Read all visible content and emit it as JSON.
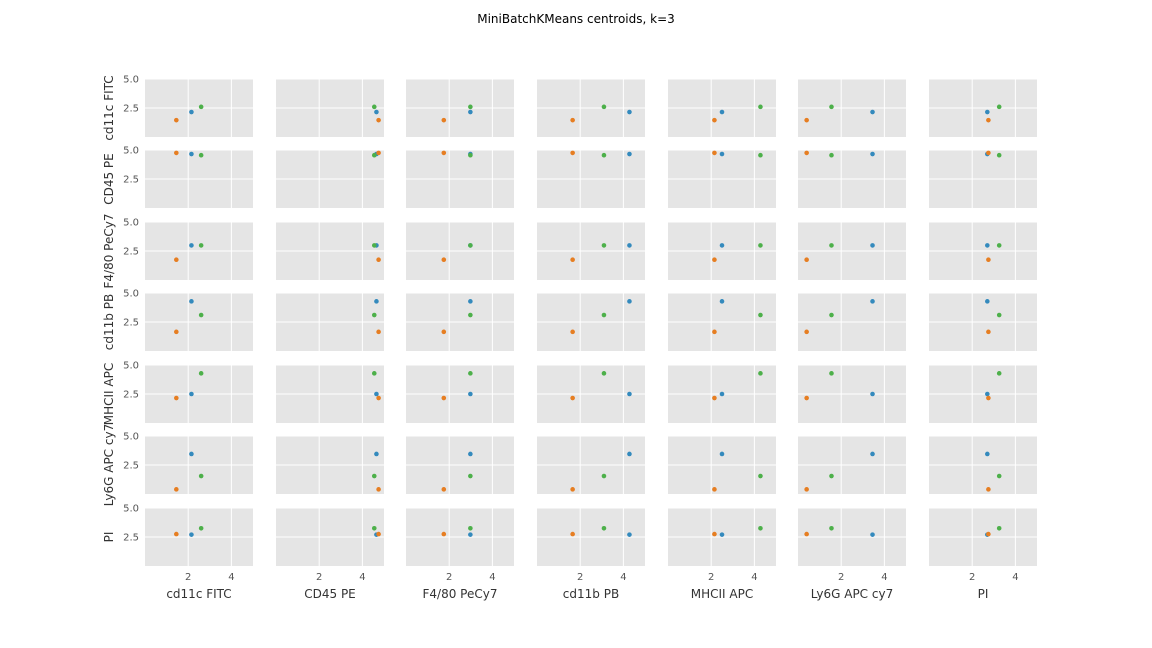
{
  "chart_data": {
    "type": "scatter",
    "title": "MiniBatchKMeans centroids, k=3",
    "variables": [
      "cd11c FITC",
      "CD45 PE",
      "F4/80 PeCy7",
      "cd11b PB",
      "MHCII APC",
      "Ly6G APC cy7",
      "PI"
    ],
    "x_ticks": [
      2,
      4
    ],
    "x_tick_labels": [
      "2",
      "4"
    ],
    "y_ticks": [
      2.5,
      5.0
    ],
    "y_tick_labels": [
      "2.5",
      "5.0"
    ],
    "xlim": [
      0.0,
      5.0
    ],
    "ylim": [
      0.0,
      5.0
    ],
    "grid": true,
    "legend": "none",
    "series": [
      {
        "color": "#348ABD",
        "values": [
          2.15,
          4.65,
          2.98,
          4.28,
          2.5,
          3.45,
          2.7
        ]
      },
      {
        "color": "#E67E22",
        "values": [
          1.45,
          4.75,
          1.75,
          1.65,
          2.15,
          0.4,
          2.75
        ]
      },
      {
        "color": "#4DB04A",
        "values": [
          2.6,
          4.55,
          2.98,
          3.1,
          4.28,
          1.55,
          3.25
        ]
      }
    ]
  }
}
